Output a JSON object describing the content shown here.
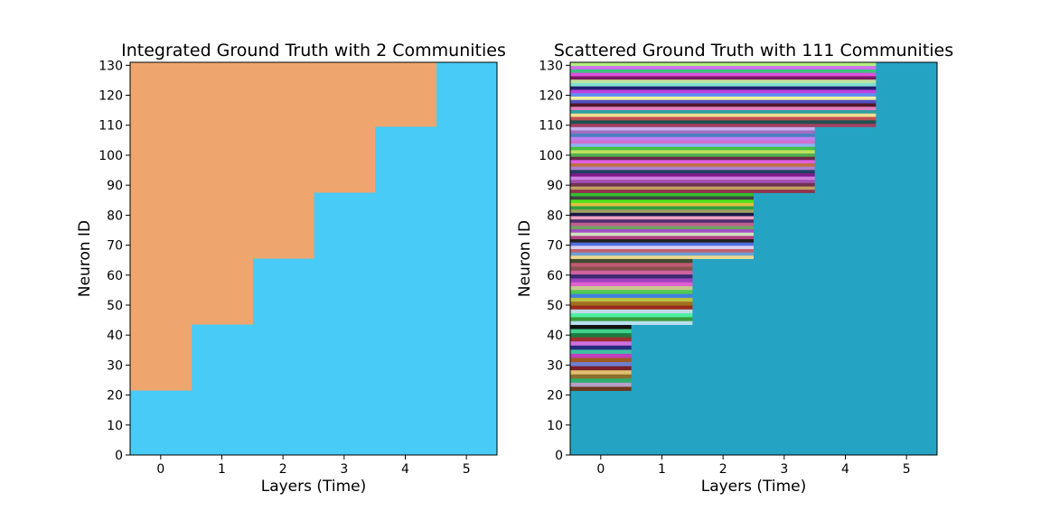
{
  "chart_data": [
    {
      "type": "heatmap",
      "title": "Integrated Ground Truth with 2 Communities",
      "xlabel": "Layers (Time)",
      "ylabel": "Neuron ID",
      "x_ticks": [
        "0",
        "1",
        "2",
        "3",
        "4",
        "5"
      ],
      "y_ticks": [
        "0",
        "10",
        "20",
        "30",
        "40",
        "50",
        "60",
        "70",
        "80",
        "90",
        "100",
        "110",
        "120",
        "130"
      ],
      "xlim": [
        -0.5,
        5.5
      ],
      "ylim": [
        0,
        131
      ],
      "background_color": "#48cbf6",
      "regions": [
        {
          "layer": 0,
          "from": 21.5,
          "to": 131,
          "color": "#eea66e"
        },
        {
          "layer": 1,
          "from": 43.5,
          "to": 131,
          "color": "#eea66e"
        },
        {
          "layer": 2,
          "from": 65.5,
          "to": 131,
          "color": "#eea66e"
        },
        {
          "layer": 3,
          "from": 87.5,
          "to": 131,
          "color": "#eea66e"
        },
        {
          "layer": 4,
          "from": 109.5,
          "to": 131,
          "color": "#eea66e"
        }
      ]
    },
    {
      "type": "heatmap",
      "title": "Scattered Ground Truth with 111 Communities",
      "xlabel": "Layers (Time)",
      "ylabel": "Neuron ID",
      "x_ticks": [
        "0",
        "1",
        "2",
        "3",
        "4",
        "5"
      ],
      "y_ticks": [
        "0",
        "10",
        "20",
        "30",
        "40",
        "50",
        "60",
        "70",
        "80",
        "90",
        "100",
        "110",
        "120",
        "130"
      ],
      "xlim": [
        -0.5,
        5.5
      ],
      "ylim": [
        0,
        131
      ],
      "background_color": "#25a3c3",
      "stripe_blocks": [
        {
          "layer_span": [
            0,
            0
          ],
          "from": 21.5,
          "to": 43.5,
          "colors": [
            "#6b3a1c",
            "#b7a0c8",
            "#2fae6f",
            "#8d6e2c",
            "#e0c070",
            "#7a1e28",
            "#6f7fd0",
            "#a05a20",
            "#c040c0",
            "#3ec0a0",
            "#2a2a80",
            "#d070e0",
            "#9c2f30",
            "#1e7a40",
            "#3fd28a",
            "#121212"
          ]
        },
        {
          "layer_span": [
            0,
            1
          ],
          "from": 43.5,
          "to": 65.5,
          "colors": [
            "#b8e0f0",
            "#3a9a3a",
            "#4af0a0",
            "#c0d8e8",
            "#9a2c1a",
            "#a07020",
            "#b8c040",
            "#4080e0",
            "#50c850",
            "#c8c890",
            "#e060d0",
            "#a040c0",
            "#3a2a70",
            "#d060a0",
            "#8a5050",
            "#c05a70",
            "#404a30"
          ]
        },
        {
          "layer_span": [
            0,
            2
          ],
          "from": 65.5,
          "to": 87.5,
          "colors": [
            "#f0d890",
            "#70a0d0",
            "#c06070",
            "#d8d0f0",
            "#5070e0",
            "#202020",
            "#b04080",
            "#d0e0c0",
            "#a050c0",
            "#70a060",
            "#c06090",
            "#503070",
            "#f0a0c0",
            "#181848",
            "#a0a060",
            "#30a040",
            "#e0c040",
            "#50e020",
            "#404040",
            "#30c030"
          ]
        },
        {
          "layer_span": [
            0,
            3
          ],
          "from": 87.5,
          "to": 109.5,
          "colors": [
            "#90304a",
            "#c0a060",
            "#703050",
            "#a050b0",
            "#d080e0",
            "#7a1a8a",
            "#204060",
            "#b080d0",
            "#c07040",
            "#e060e0",
            "#6a2a4a",
            "#50b050",
            "#c0e060",
            "#40c040",
            "#90b0f0",
            "#d070d0",
            "#c080f0",
            "#4a80c0",
            "#a070c0",
            "#c8b0f0"
          ]
        },
        {
          "layer_span": [
            0,
            4
          ],
          "from": 109.5,
          "to": 131,
          "colors": [
            "#a04060",
            "#205050",
            "#c05050",
            "#f0e090",
            "#30a0a0",
            "#e080c0",
            "#501828",
            "#5050c0",
            "#f0f0a0",
            "#6090f0",
            "#c040e0",
            "#202070",
            "#80e0d0",
            "#c0e0a0",
            "#7a1a60",
            "#e050e0",
            "#40c080",
            "#d070f0",
            "#b0f080"
          ]
        }
      ]
    }
  ]
}
